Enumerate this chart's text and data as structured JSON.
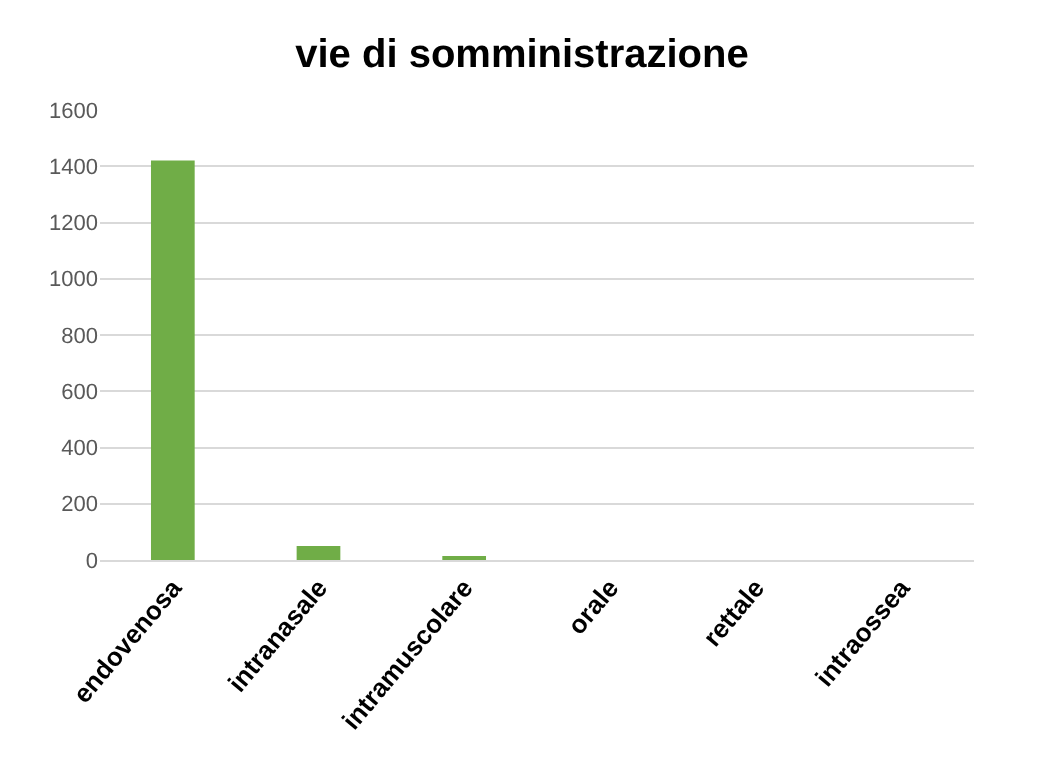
{
  "chart_data": {
    "type": "bar",
    "title": "vie di somministrazione",
    "categories": [
      "endovenosa",
      "intranasale",
      "intramuscolare",
      "orale",
      "rettale",
      "intraossea"
    ],
    "values": [
      1420,
      50,
      10,
      0,
      0,
      0
    ],
    "color": "#70ad47",
    "ylim": [
      0,
      1600
    ],
    "yticks": [
      0,
      200,
      400,
      600,
      800,
      1000,
      1200,
      1400,
      1600
    ],
    "grid": "y"
  }
}
